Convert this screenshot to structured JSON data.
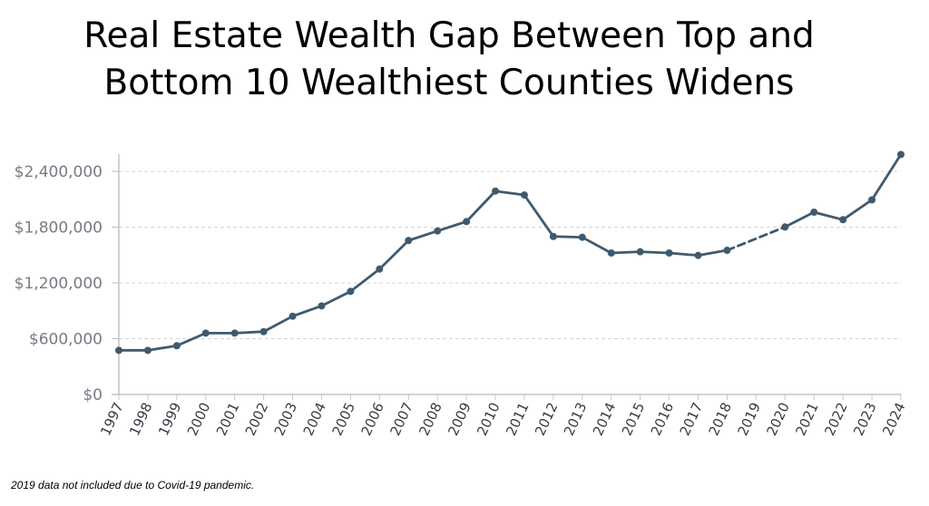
{
  "chart_data": {
    "type": "line",
    "title_line1": "Real Estate Wealth Gap Between Top and",
    "title_line2": "Bottom 10 Wealthiest Counties Widens",
    "note": "2019 data not included due to Covid-19 pandemic.",
    "xlabel": "",
    "ylabel": "",
    "ylim": [
      0,
      2600000
    ],
    "yticks": [
      0,
      600000,
      1200000,
      1800000,
      2400000
    ],
    "ytick_labels": [
      "$0",
      "$600,000",
      "$1,200,000",
      "$1,800,000",
      "$2,400,000"
    ],
    "grid": true,
    "categories": [
      "1997",
      "1998",
      "1999",
      "2000",
      "2001",
      "2002",
      "2003",
      "2004",
      "2005",
      "2006",
      "2007",
      "2008",
      "2009",
      "2010",
      "2011",
      "2012",
      "2013",
      "2014",
      "2015",
      "2016",
      "2017",
      "2018",
      "2019",
      "2020",
      "2021",
      "2022",
      "2023",
      "2024"
    ],
    "series": [
      {
        "name": "Real estate wealth gap",
        "color": "#3f5a6e",
        "values": [
          475000,
          475000,
          524000,
          660000,
          660000,
          676000,
          842000,
          953000,
          1109000,
          1349000,
          1656000,
          1759000,
          1860000,
          2188000,
          2146000,
          1700000,
          1691000,
          1522000,
          1535000,
          1522000,
          1496000,
          1551000,
          null,
          1802000,
          1961000,
          1880000,
          2094000,
          2582000
        ]
      }
    ]
  }
}
